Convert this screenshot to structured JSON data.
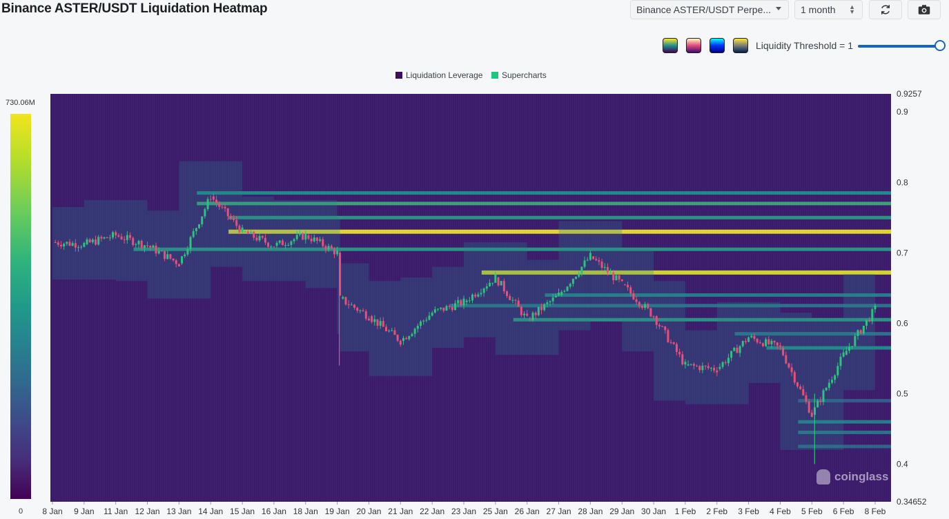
{
  "header": {
    "title": "Binance ASTER/USDT Liquidation Heatmap",
    "pair_select": "Binance ASTER/USDT Perpe...",
    "period_select": "1 month",
    "refresh_icon": "refresh-icon",
    "camera_icon": "camera-icon"
  },
  "controls": {
    "palettes": [
      {
        "name": "viridis",
        "colors": [
          "#fde725",
          "#21918c",
          "#440154"
        ]
      },
      {
        "name": "magma",
        "colors": [
          "#fcfdbf",
          "#e3487e",
          "#3b0f70"
        ]
      },
      {
        "name": "jet",
        "colors": [
          "#00ffff",
          "#0033ff",
          "#000080"
        ]
      },
      {
        "name": "cividis",
        "colors": [
          "#fee838",
          "#7c7b78",
          "#00204d"
        ]
      }
    ],
    "threshold_label": "Liquidity Threshold = 1",
    "threshold_value": 1,
    "slider_icon": "slider-knob"
  },
  "legend": [
    {
      "label": "Liquidation Leverage",
      "color": "#3b0f5a"
    },
    {
      "label": "Supercharts",
      "color": "#1fc77e"
    }
  ],
  "colorbar": {
    "max_label": "730.06M",
    "min_label": "0"
  },
  "watermark": "coinglass",
  "chart_data": {
    "type": "heatmap",
    "title": "Binance ASTER/USDT Liquidation Heatmap",
    "x_tick_labels": [
      "8 Jan",
      "9 Jan",
      "11 Jan",
      "12 Jan",
      "13 Jan",
      "14 Jan",
      "15 Jan",
      "16 Jan",
      "18 Jan",
      "19 Jan",
      "20 Jan",
      "21 Jan",
      "22 Jan",
      "23 Jan",
      "25 Jan",
      "26 Jan",
      "27 Jan",
      "28 Jan",
      "29 Jan",
      "30 Jan",
      "1 Feb",
      "2 Feb",
      "3 Feb",
      "4 Feb",
      "5 Feb",
      "6 Feb",
      "8 Feb"
    ],
    "y_tick_labels": [
      "0.9257",
      "0.9",
      "0.8",
      "0.7",
      "0.6",
      "0.5",
      "0.4",
      "0.34652"
    ],
    "ylim": [
      0.34652,
      0.9257
    ],
    "colorbar_range": [
      0,
      730.06
    ],
    "colorbar_unit": "M",
    "price_series": [
      [
        "8 Jan",
        0.715
      ],
      [
        "9 Jan",
        0.712
      ],
      [
        "11 Jan",
        0.725
      ],
      [
        "12 Jan",
        0.71
      ],
      [
        "13 Jan",
        0.685
      ],
      [
        "14 Jan",
        0.78
      ],
      [
        "15 Jan",
        0.73
      ],
      [
        "16 Jan",
        0.71
      ],
      [
        "18 Jan",
        0.725
      ],
      [
        "19 Jan",
        0.7
      ],
      [
        "19 Jan",
        0.635
      ],
      [
        "20 Jan",
        0.61
      ],
      [
        "21 Jan",
        0.575
      ],
      [
        "22 Jan",
        0.615
      ],
      [
        "23 Jan",
        0.63
      ],
      [
        "25 Jan",
        0.665
      ],
      [
        "26 Jan",
        0.605
      ],
      [
        "27 Jan",
        0.64
      ],
      [
        "28 Jan",
        0.695
      ],
      [
        "29 Jan",
        0.655
      ],
      [
        "30 Jan",
        0.61
      ],
      [
        "1 Feb",
        0.54
      ],
      [
        "2 Feb",
        0.535
      ],
      [
        "3 Feb",
        0.58
      ],
      [
        "4 Feb",
        0.565
      ],
      [
        "5 Feb",
        0.47
      ],
      [
        "6 Feb",
        0.555
      ],
      [
        "8 Feb",
        0.62
      ]
    ],
    "liquidation_bands": [
      {
        "price": 0.73,
        "intensity": 0.98
      },
      {
        "price": 0.672,
        "intensity": 0.95
      },
      {
        "price": 0.77,
        "intensity": 0.62
      },
      {
        "price": 0.785,
        "intensity": 0.5
      },
      {
        "price": 0.75,
        "intensity": 0.55
      },
      {
        "price": 0.705,
        "intensity": 0.55
      },
      {
        "price": 0.64,
        "intensity": 0.45
      },
      {
        "price": 0.605,
        "intensity": 0.55
      },
      {
        "price": 0.565,
        "intensity": 0.5
      },
      {
        "price": 0.585,
        "intensity": 0.4
      },
      {
        "price": 0.625,
        "intensity": 0.4
      },
      {
        "price": 0.46,
        "intensity": 0.45
      },
      {
        "price": 0.445,
        "intensity": 0.4
      },
      {
        "price": 0.425,
        "intensity": 0.35
      },
      {
        "price": 0.49,
        "intensity": 0.3
      }
    ]
  }
}
